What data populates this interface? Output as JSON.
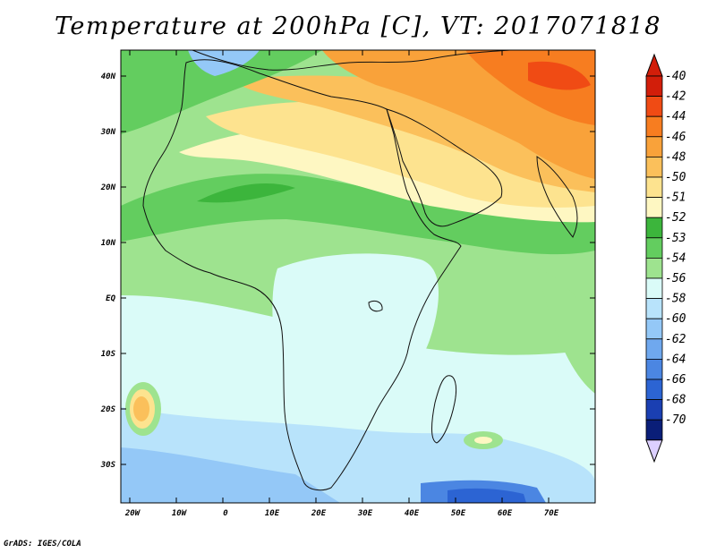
{
  "title": "Temperature at 200hPa [C], VT: 2017071818",
  "credit": "GrADS: IGES/COLA",
  "map": {
    "lat_labels": [
      "40N",
      "30N",
      "20N",
      "10N",
      "EQ",
      "10S",
      "20S",
      "30S"
    ],
    "lon_labels": [
      "20W",
      "10W",
      "0",
      "10E",
      "20E",
      "30E",
      "40E",
      "50E",
      "60E",
      "70E"
    ]
  },
  "legend": {
    "labels": [
      "-40",
      "-42",
      "-44",
      "-46",
      "-48",
      "-50",
      "-51",
      "-52",
      "-53",
      "-54",
      "-56",
      "-58",
      "-60",
      "-62",
      "-64",
      "-66",
      "-68",
      "-70"
    ],
    "colors": [
      "#d21e0a",
      "#f04b14",
      "#f77d20",
      "#f9a23a",
      "#fbc05b",
      "#fde38f",
      "#fef7c2",
      "#3cb53c",
      "#63cd5f",
      "#9ee38f",
      "#dafbf8",
      "#b8e3fb",
      "#94c8f7",
      "#6fa8ee",
      "#4b86e2",
      "#2c64d3",
      "#1a3fb2",
      "#0a1e78"
    ],
    "top_color": "#d21e0a",
    "bottom_color": "#dcd0ff"
  },
  "colors": {
    "coast": "#111111",
    "cold_deep": "#1e5fcc"
  }
}
